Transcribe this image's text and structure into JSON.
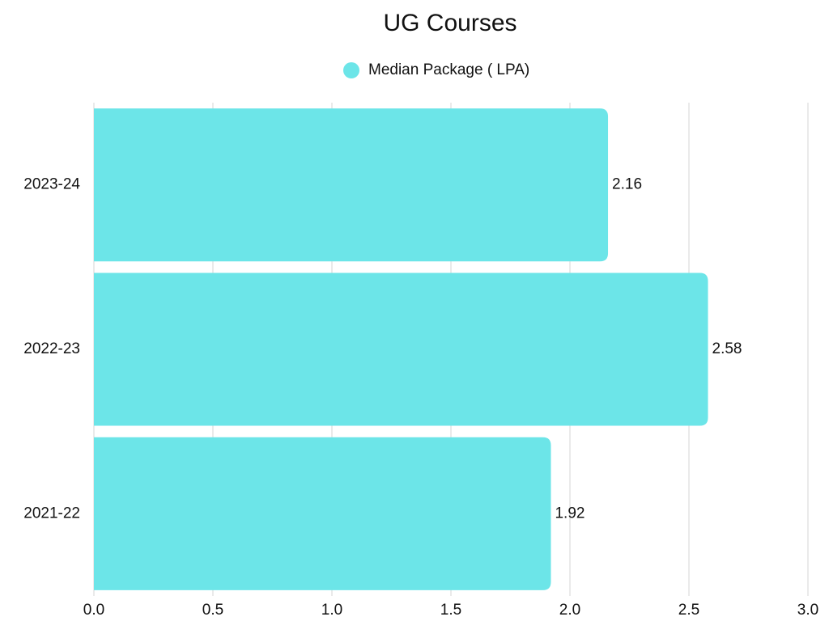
{
  "chart_data": {
    "type": "hbar",
    "title": "UG Courses",
    "categories": [
      "2023-24",
      "2022-23",
      "2021-22"
    ],
    "series": [
      {
        "name": "Median Package ( LPA)",
        "color": "#6ce5e8",
        "values": [
          2.16,
          2.58,
          1.92
        ]
      }
    ],
    "xlim": [
      0,
      3
    ],
    "xticks": [
      {
        "value": 0,
        "label": "0.0"
      },
      0.5,
      {
        "value": 1,
        "label": "1.0"
      },
      1.5,
      {
        "value": 2,
        "label": "2.0"
      },
      2.5,
      {
        "value": 3,
        "label": "3.0"
      }
    ],
    "grid": true,
    "legend": "top"
  }
}
